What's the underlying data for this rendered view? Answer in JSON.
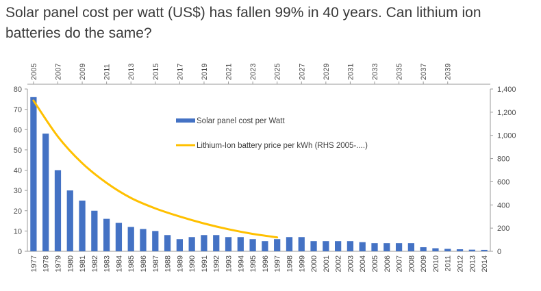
{
  "title": "Solar panel cost per watt (US$) has fallen 99% in 40 years. Can lithium ion batteries do the same?",
  "chart_data": {
    "type": "bar",
    "categories": [
      "1977",
      "1978",
      "1979",
      "1980",
      "1981",
      "1982",
      "1983",
      "1984",
      "1985",
      "1986",
      "1987",
      "1988",
      "1989",
      "1990",
      "1991",
      "1992",
      "1993",
      "1994",
      "1995",
      "1996",
      "1997",
      "1998",
      "1999",
      "2000",
      "2001",
      "2002",
      "2003",
      "2004",
      "2005",
      "2006",
      "2007",
      "2008",
      "2009",
      "2010",
      "2011",
      "2012",
      "2013",
      "2014"
    ],
    "series": [
      {
        "name": "Solar panel cost per Watt",
        "type": "bar",
        "axis": "left",
        "color": "#4472c4",
        "values": [
          76,
          58,
          40,
          30,
          25,
          20,
          16,
          14,
          12,
          11,
          10,
          8,
          6,
          7,
          8,
          8,
          7,
          7,
          6,
          5,
          6,
          7,
          7,
          5,
          5,
          5,
          5,
          4.5,
          4,
          4,
          4,
          4,
          2,
          1.5,
          1.2,
          1,
          0.8,
          0.7
        ]
      },
      {
        "name": "Lithium-Ion battery price per kWh (RHS 2005-....)",
        "type": "line",
        "axis": "right",
        "color": "#ffc000",
        "x": [
          "2005",
          "2007",
          "2009",
          "2011",
          "2013",
          "2015",
          "2017",
          "2019",
          "2021",
          "2023",
          "2025"
        ],
        "values": [
          1300,
          990,
          760,
          590,
          460,
          370,
          300,
          240,
          190,
          150,
          120
        ]
      }
    ],
    "top_axis_ticks": [
      "2005",
      "2007",
      "2009",
      "2011",
      "2013",
      "2015",
      "2017",
      "2019",
      "2021",
      "2023",
      "2025",
      "2027",
      "2029",
      "2031",
      "2033",
      "2035",
      "2037",
      "2039"
    ],
    "yleft_ticks": [
      "0",
      "10",
      "20",
      "30",
      "40",
      "50",
      "60",
      "70",
      "80"
    ],
    "yleft_lim": [
      0,
      80
    ],
    "yright_ticks": [
      "0",
      "200",
      "400",
      "600",
      "800",
      "1,000",
      "1,200",
      "1,400"
    ],
    "yright_lim": [
      0,
      1400
    ],
    "legend_position": "center-top",
    "grid": false
  }
}
